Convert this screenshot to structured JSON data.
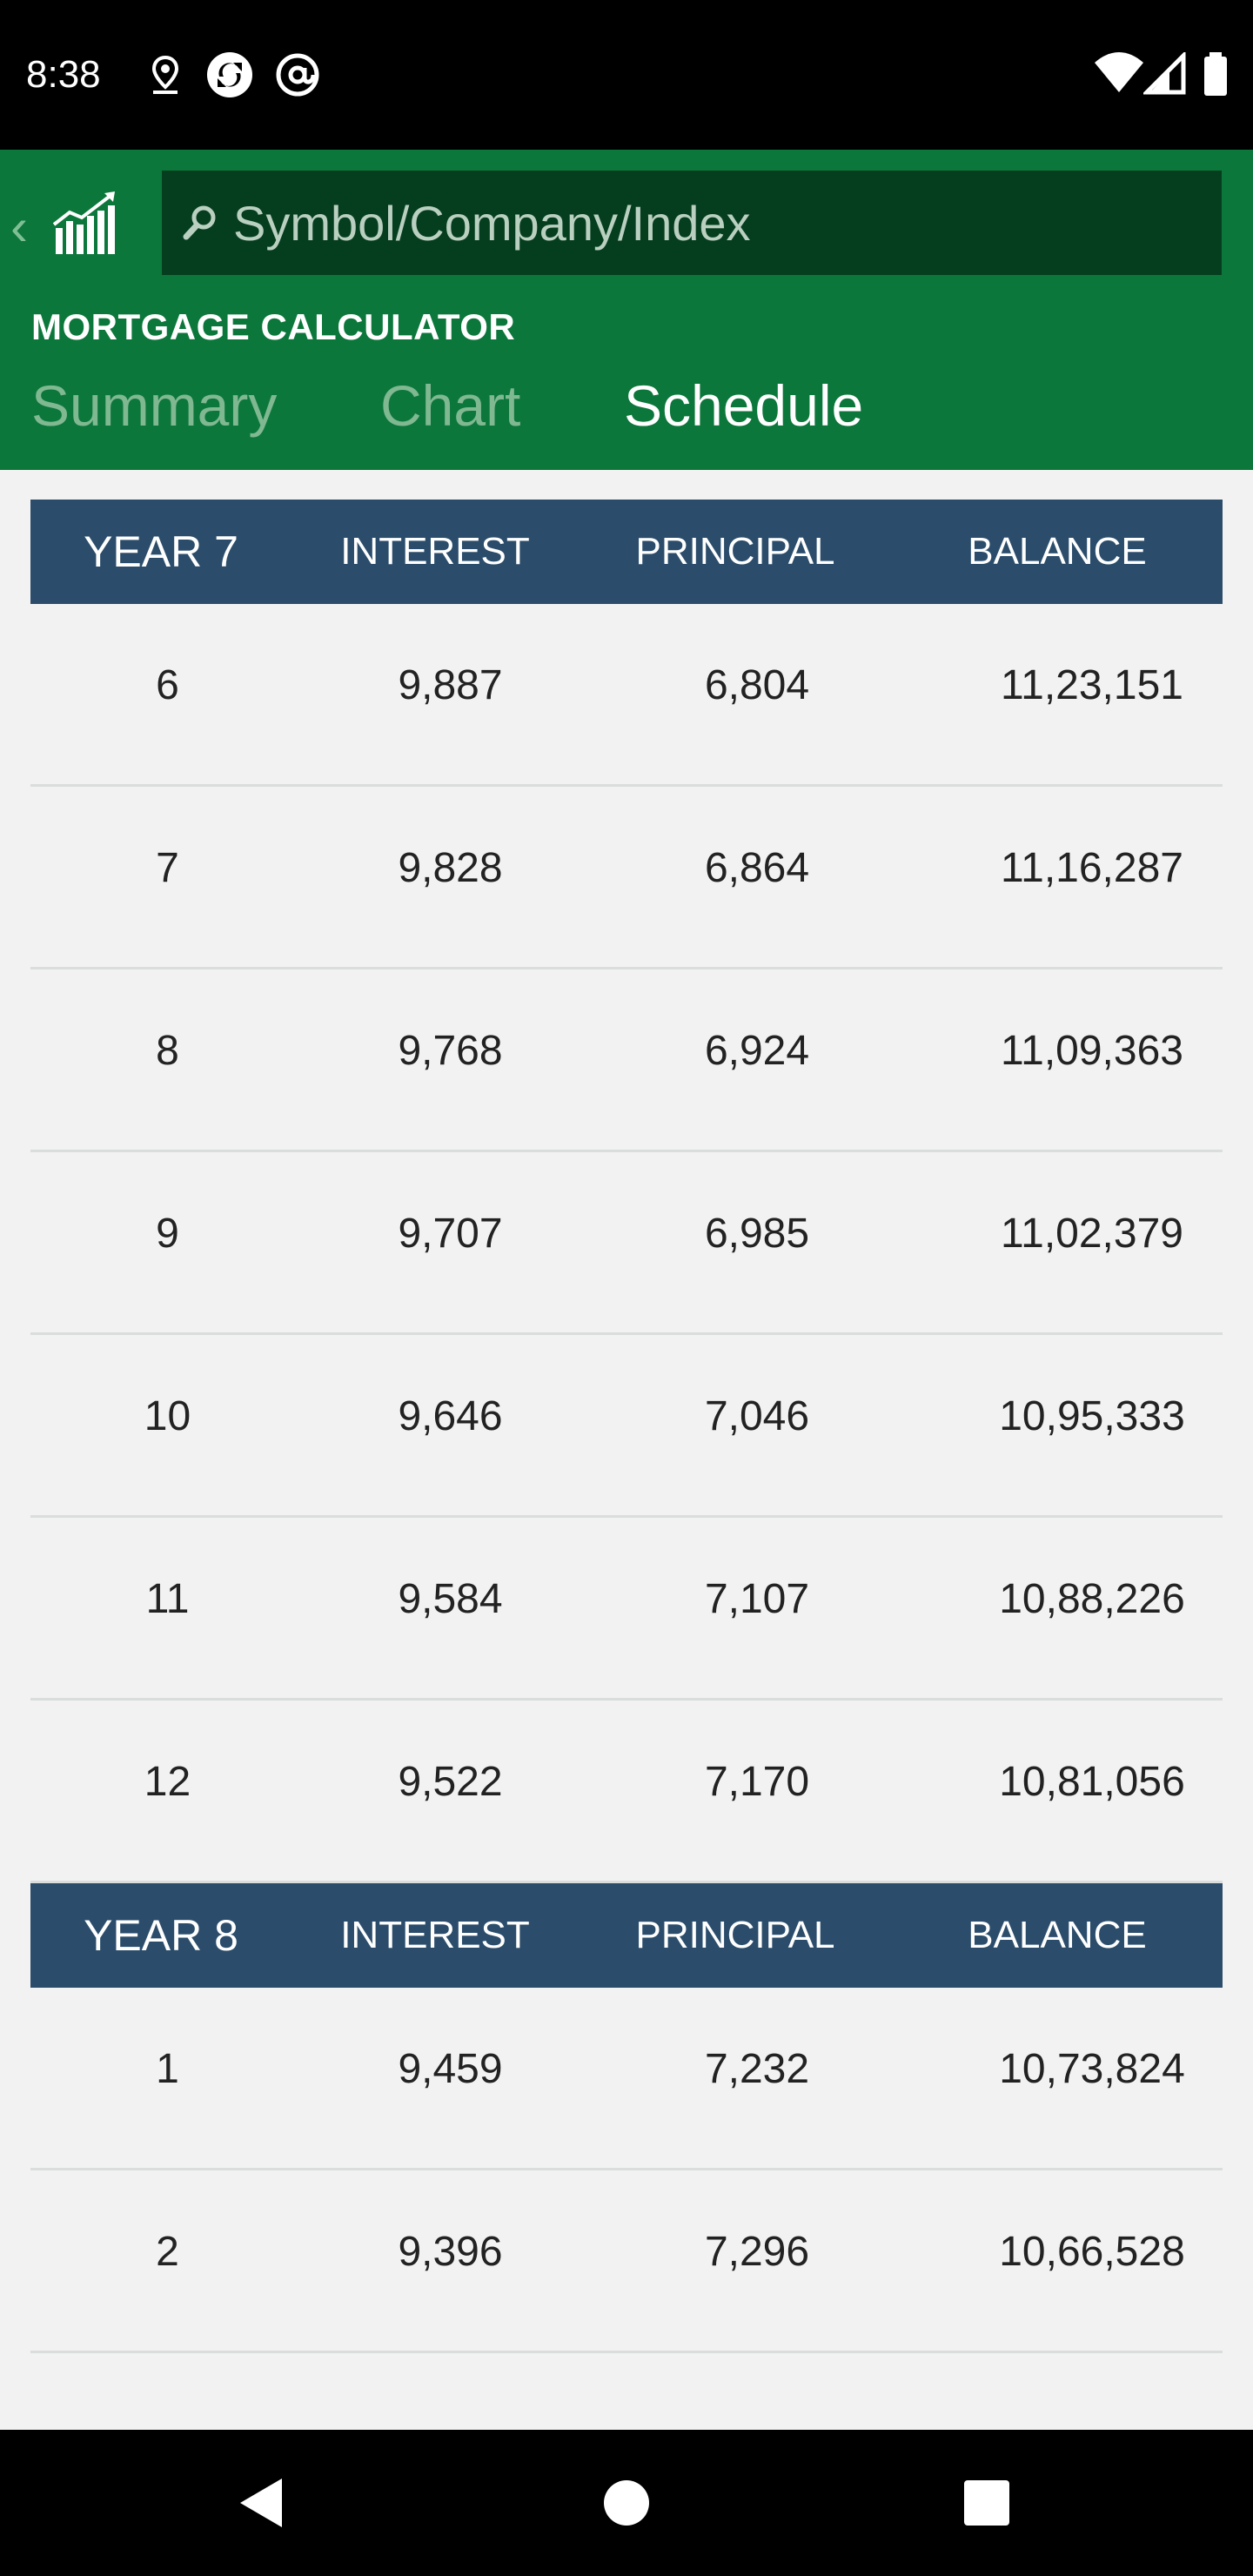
{
  "status_bar": {
    "time": "8:38",
    "icons_left": [
      "location-icon",
      "sync-icon",
      "at-sign-icon"
    ],
    "icons_right": [
      "wifi-icon",
      "signal-icon",
      "battery-icon"
    ]
  },
  "header": {
    "search_placeholder": "Symbol/Company/Index",
    "calculator_title": "MORTGAGE CALCULATOR",
    "tabs": [
      {
        "label": "Summary",
        "active": false
      },
      {
        "label": "Chart",
        "active": false
      },
      {
        "label": "Schedule",
        "active": true
      }
    ],
    "colors": {
      "brand_green": "#0c773b",
      "search_bg": "#053e1e",
      "inactive_tab": "#7fb891"
    }
  },
  "schedule": {
    "columns": [
      "INTEREST",
      "PRINCIPAL",
      "BALANCE"
    ],
    "header_color": "#2b4d6b",
    "years": [
      {
        "label": "YEAR 7",
        "rows": [
          {
            "month": "6",
            "interest": "9,887",
            "principal": "6,804",
            "balance": "11,23,151"
          },
          {
            "month": "7",
            "interest": "9,828",
            "principal": "6,864",
            "balance": "11,16,287"
          },
          {
            "month": "8",
            "interest": "9,768",
            "principal": "6,924",
            "balance": "11,09,363"
          },
          {
            "month": "9",
            "interest": "9,707",
            "principal": "6,985",
            "balance": "11,02,379"
          },
          {
            "month": "10",
            "interest": "9,646",
            "principal": "7,046",
            "balance": "10,95,333"
          },
          {
            "month": "11",
            "interest": "9,584",
            "principal": "7,107",
            "balance": "10,88,226"
          },
          {
            "month": "12",
            "interest": "9,522",
            "principal": "7,170",
            "balance": "10,81,056"
          }
        ]
      },
      {
        "label": "YEAR 8",
        "rows": [
          {
            "month": "1",
            "interest": "9,459",
            "principal": "7,232",
            "balance": "10,73,824"
          },
          {
            "month": "2",
            "interest": "9,396",
            "principal": "7,296",
            "balance": "10,66,528"
          }
        ]
      }
    ]
  },
  "nav_bar": {
    "buttons": [
      "back-icon",
      "home-icon",
      "recents-icon"
    ]
  }
}
